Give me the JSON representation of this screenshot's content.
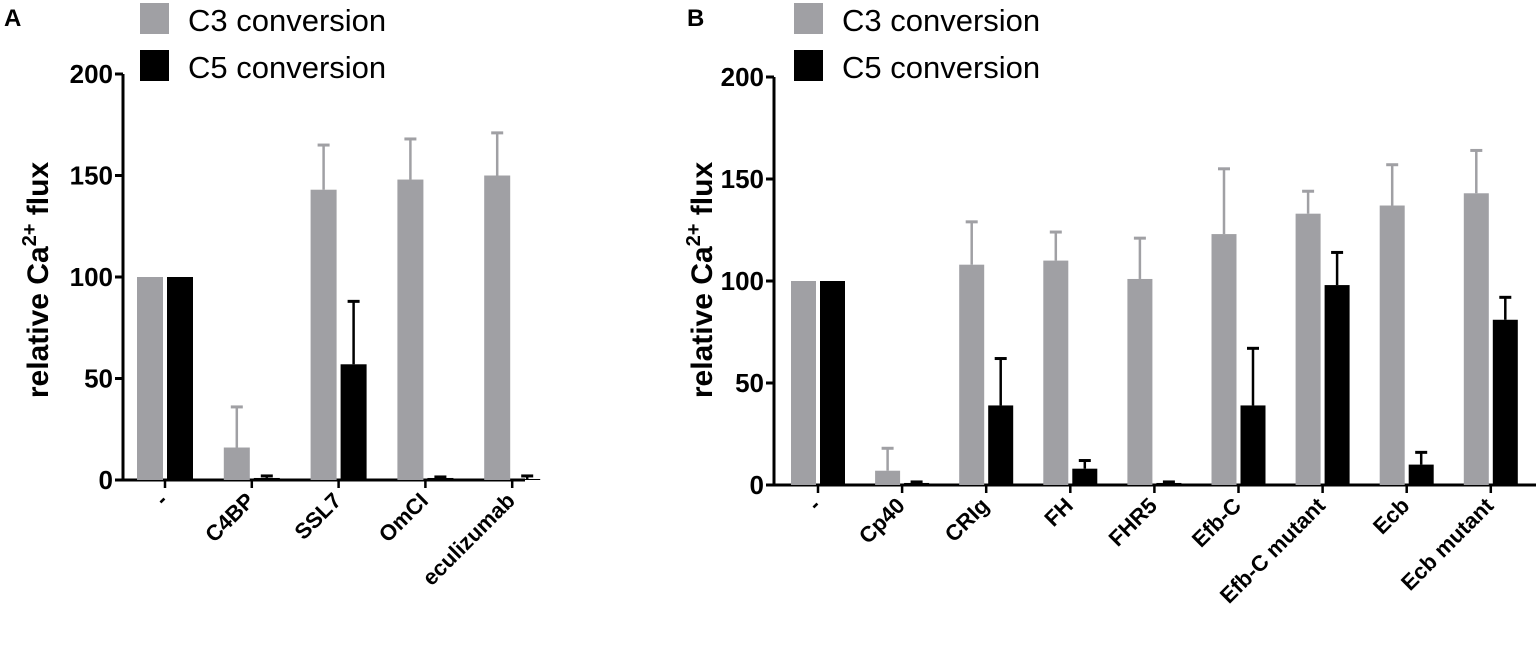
{
  "chart_data": [
    {
      "type": "bar",
      "panel_label": "A",
      "ylabel": "relative Ca2+ flux",
      "ylabel_parts": {
        "pre": "relative Ca",
        "sup": "2+",
        "post": " flux"
      },
      "ylim": [
        0,
        200
      ],
      "yticks": [
        "0",
        "50",
        "100",
        "150",
        "200"
      ],
      "grid": false,
      "legend_placement": "top",
      "categories": [
        "-",
        "C4BP",
        "SSL7",
        "OmCI",
        "eculizumab"
      ],
      "series": [
        {
          "name": "C3 conversion",
          "color": "#a0a0a4",
          "values": [
            100,
            16,
            143,
            148,
            150
          ],
          "error_upper": [
            0,
            20,
            22,
            20,
            21
          ]
        },
        {
          "name": "C5 conversion",
          "color": "#000000",
          "values": [
            100,
            1,
            57,
            1,
            0.5
          ],
          "error_upper": [
            0,
            1,
            31,
            0.5,
            1.5
          ]
        }
      ]
    },
    {
      "type": "bar",
      "panel_label": "B",
      "ylabel": "relative Ca2+ flux",
      "ylabel_parts": {
        "pre": "relative Ca",
        "sup": "2+",
        "post": " flux"
      },
      "ylim": [
        0,
        200
      ],
      "yticks": [
        "0",
        "50",
        "100",
        "150",
        "200"
      ],
      "grid": false,
      "legend_placement": "top",
      "categories": [
        "-",
        "Cp40",
        "CRIg",
        "FH",
        "FHR5",
        "Efb-C",
        "Efb-C mutant",
        "Ecb",
        "Ecb mutant"
      ],
      "series": [
        {
          "name": "C3 conversion",
          "color": "#a0a0a4",
          "values": [
            100,
            7,
            108,
            110,
            101,
            123,
            133,
            137,
            143
          ],
          "error_upper": [
            0,
            11,
            21,
            14,
            20,
            32,
            11,
            20,
            21
          ]
        },
        {
          "name": "C5 conversion",
          "color": "#000000",
          "values": [
            100,
            1,
            39,
            8,
            1,
            39,
            98,
            10,
            81
          ],
          "error_upper": [
            0,
            0.5,
            23,
            4,
            0.5,
            28,
            16,
            6,
            11
          ]
        }
      ]
    }
  ]
}
